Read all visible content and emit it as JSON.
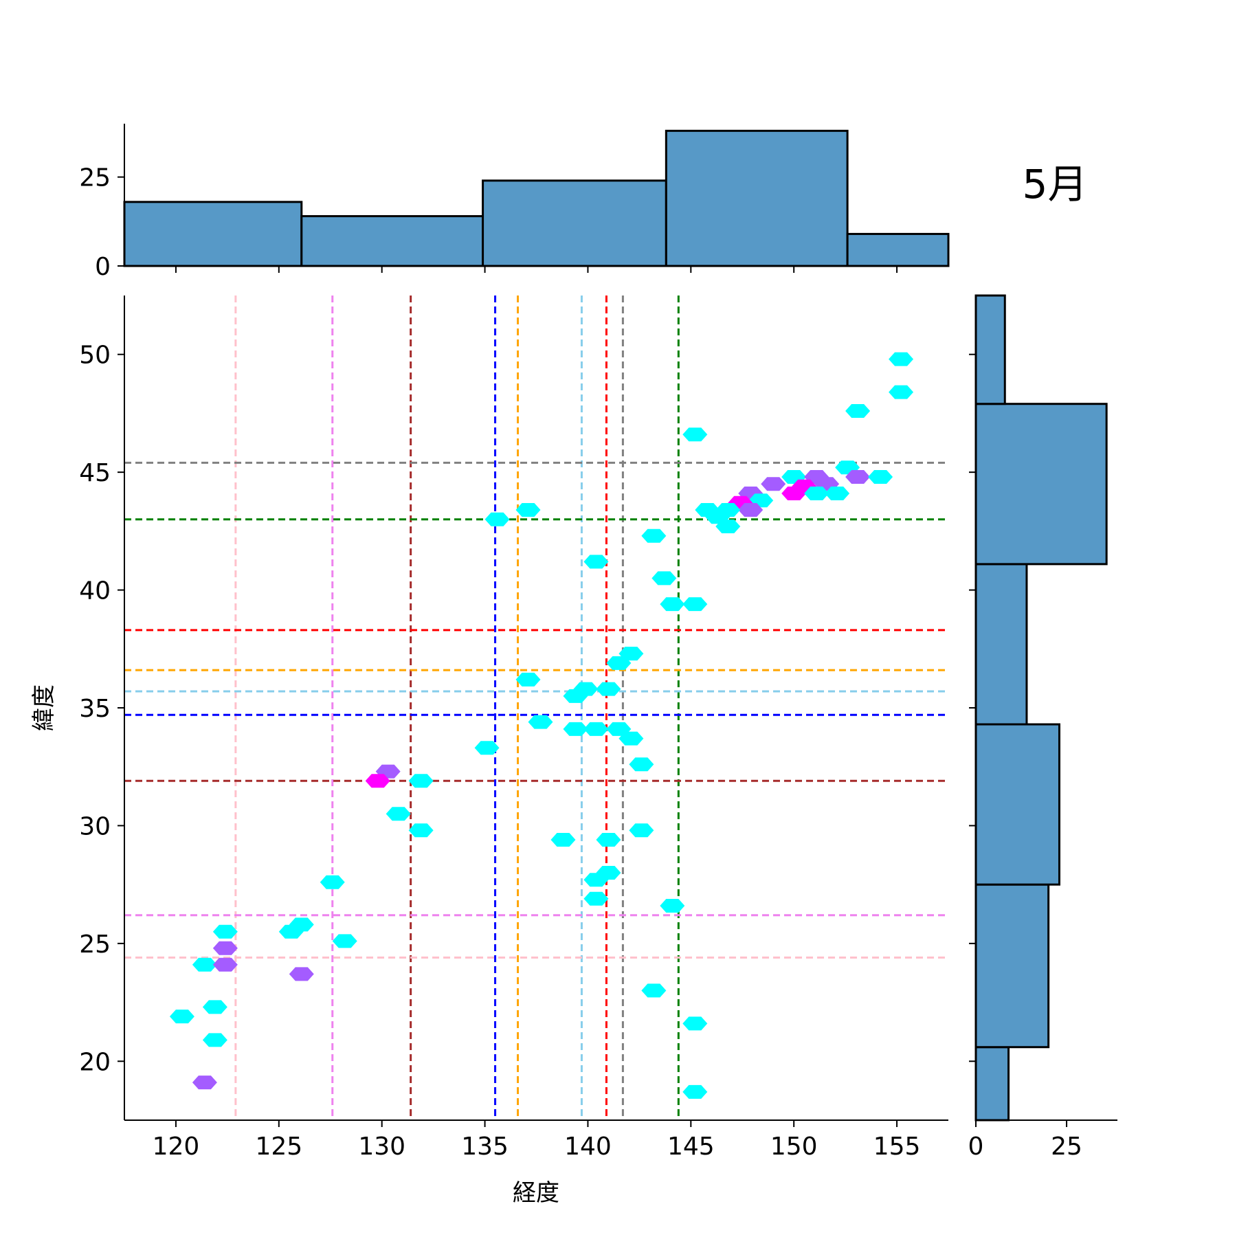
{
  "chart_data": {
    "type": "hexbin-jointplot",
    "title": "5月",
    "xlabel": "経度",
    "ylabel": "緯度",
    "xlim": [
      117.5,
      157.5
    ],
    "ylim": [
      17.5,
      52.5
    ],
    "xticks": [
      120,
      125,
      130,
      135,
      140,
      145,
      150,
      155
    ],
    "yticks": [
      20,
      25,
      30,
      35,
      40,
      45,
      50
    ],
    "hex_colors": {
      "low": "#00ffff",
      "mid": "#a45cff",
      "high": "#ff00ff"
    },
    "hexbins": [
      {
        "x": 155.2,
        "y": 49.8,
        "level": "low"
      },
      {
        "x": 155.2,
        "y": 48.4,
        "level": "low"
      },
      {
        "x": 153.1,
        "y": 47.6,
        "level": "low"
      },
      {
        "x": 145.2,
        "y": 46.6,
        "level": "low"
      },
      {
        "x": 152.6,
        "y": 45.2,
        "level": "low"
      },
      {
        "x": 153.1,
        "y": 44.8,
        "level": "mid"
      },
      {
        "x": 154.2,
        "y": 44.8,
        "level": "low"
      },
      {
        "x": 149.0,
        "y": 44.5,
        "level": "mid"
      },
      {
        "x": 150.0,
        "y": 44.8,
        "level": "low"
      },
      {
        "x": 151.1,
        "y": 44.8,
        "level": "mid"
      },
      {
        "x": 151.6,
        "y": 44.5,
        "level": "mid"
      },
      {
        "x": 150.0,
        "y": 44.1,
        "level": "high"
      },
      {
        "x": 150.5,
        "y": 44.4,
        "level": "high"
      },
      {
        "x": 151.1,
        "y": 44.1,
        "level": "low"
      },
      {
        "x": 152.1,
        "y": 44.1,
        "level": "low"
      },
      {
        "x": 147.9,
        "y": 44.1,
        "level": "mid"
      },
      {
        "x": 148.4,
        "y": 43.8,
        "level": "low"
      },
      {
        "x": 147.4,
        "y": 43.7,
        "level": "high"
      },
      {
        "x": 147.9,
        "y": 43.4,
        "level": "mid"
      },
      {
        "x": 145.8,
        "y": 43.4,
        "level": "low"
      },
      {
        "x": 146.8,
        "y": 43.4,
        "level": "low"
      },
      {
        "x": 146.3,
        "y": 43.1,
        "level": "low"
      },
      {
        "x": 146.8,
        "y": 42.7,
        "level": "low"
      },
      {
        "x": 137.1,
        "y": 43.4,
        "level": "low"
      },
      {
        "x": 135.6,
        "y": 43.0,
        "level": "low"
      },
      {
        "x": 143.2,
        "y": 42.3,
        "level": "low"
      },
      {
        "x": 140.4,
        "y": 41.2,
        "level": "low"
      },
      {
        "x": 143.7,
        "y": 40.5,
        "level": "low"
      },
      {
        "x": 144.1,
        "y": 39.4,
        "level": "low"
      },
      {
        "x": 145.2,
        "y": 39.4,
        "level": "low"
      },
      {
        "x": 142.1,
        "y": 37.3,
        "level": "low"
      },
      {
        "x": 141.5,
        "y": 36.9,
        "level": "low"
      },
      {
        "x": 137.1,
        "y": 36.2,
        "level": "low"
      },
      {
        "x": 139.9,
        "y": 35.8,
        "level": "low"
      },
      {
        "x": 141.0,
        "y": 35.8,
        "level": "low"
      },
      {
        "x": 139.4,
        "y": 35.5,
        "level": "low"
      },
      {
        "x": 137.7,
        "y": 34.4,
        "level": "low"
      },
      {
        "x": 139.4,
        "y": 34.1,
        "level": "low"
      },
      {
        "x": 140.4,
        "y": 34.1,
        "level": "low"
      },
      {
        "x": 141.5,
        "y": 34.1,
        "level": "low"
      },
      {
        "x": 142.1,
        "y": 33.7,
        "level": "low"
      },
      {
        "x": 135.1,
        "y": 33.3,
        "level": "low"
      },
      {
        "x": 142.6,
        "y": 32.6,
        "level": "low"
      },
      {
        "x": 130.3,
        "y": 32.3,
        "level": "mid"
      },
      {
        "x": 129.8,
        "y": 31.9,
        "level": "high"
      },
      {
        "x": 131.9,
        "y": 31.9,
        "level": "low"
      },
      {
        "x": 130.8,
        "y": 30.5,
        "level": "low"
      },
      {
        "x": 131.9,
        "y": 29.8,
        "level": "low"
      },
      {
        "x": 142.6,
        "y": 29.8,
        "level": "low"
      },
      {
        "x": 138.8,
        "y": 29.4,
        "level": "low"
      },
      {
        "x": 141.0,
        "y": 29.4,
        "level": "low"
      },
      {
        "x": 141.0,
        "y": 28.0,
        "level": "low"
      },
      {
        "x": 140.4,
        "y": 27.7,
        "level": "low"
      },
      {
        "x": 127.6,
        "y": 27.6,
        "level": "low"
      },
      {
        "x": 140.4,
        "y": 26.9,
        "level": "low"
      },
      {
        "x": 144.1,
        "y": 26.6,
        "level": "low"
      },
      {
        "x": 126.1,
        "y": 25.8,
        "level": "low"
      },
      {
        "x": 125.6,
        "y": 25.5,
        "level": "low"
      },
      {
        "x": 122.4,
        "y": 25.5,
        "level": "low"
      },
      {
        "x": 128.2,
        "y": 25.1,
        "level": "low"
      },
      {
        "x": 122.4,
        "y": 24.8,
        "level": "mid"
      },
      {
        "x": 121.4,
        "y": 24.1,
        "level": "low"
      },
      {
        "x": 122.4,
        "y": 24.1,
        "level": "mid"
      },
      {
        "x": 126.1,
        "y": 23.7,
        "level": "mid"
      },
      {
        "x": 143.2,
        "y": 23.0,
        "level": "low"
      },
      {
        "x": 121.9,
        "y": 22.3,
        "level": "low"
      },
      {
        "x": 120.3,
        "y": 21.9,
        "level": "low"
      },
      {
        "x": 145.2,
        "y": 21.6,
        "level": "low"
      },
      {
        "x": 121.9,
        "y": 20.9,
        "level": "low"
      },
      {
        "x": 121.4,
        "y": 19.1,
        "level": "mid"
      },
      {
        "x": 145.2,
        "y": 18.7,
        "level": "low"
      }
    ],
    "reference_lines": [
      {
        "color": "#ffc0cb",
        "x": 122.9,
        "y": 24.4
      },
      {
        "color": "#ee82ee",
        "x": 127.6,
        "y": 26.2
      },
      {
        "color": "#a52a2a",
        "x": 131.4,
        "y": 31.9
      },
      {
        "color": "#0000ff",
        "x": 135.5,
        "y": 34.7
      },
      {
        "color": "#ffa500",
        "x": 136.6,
        "y": 36.6
      },
      {
        "color": "#87ceeb",
        "x": 139.7,
        "y": 35.7
      },
      {
        "color": "#ff0000",
        "x": 140.9,
        "y": 38.3
      },
      {
        "color": "#808080",
        "x": 141.7,
        "y": 45.4
      },
      {
        "color": "#008000",
        "x": 144.4,
        "y": 43.0
      }
    ],
    "marginal_x": {
      "bins": [
        117.5,
        126.1,
        134.9,
        143.8,
        152.6,
        157.5
      ],
      "counts": [
        18,
        14,
        24,
        38,
        9
      ],
      "yticks": [
        0,
        25
      ],
      "ylim": [
        0,
        40
      ]
    },
    "marginal_y": {
      "bins": [
        17.5,
        20.6,
        27.5,
        34.3,
        41.1,
        47.9,
        52.5
      ],
      "counts": [
        9,
        20,
        23,
        14,
        36,
        8
      ],
      "xticks": [
        0,
        25
      ],
      "xlim": [
        0,
        39
      ]
    },
    "bar_color": "#5799c7"
  }
}
